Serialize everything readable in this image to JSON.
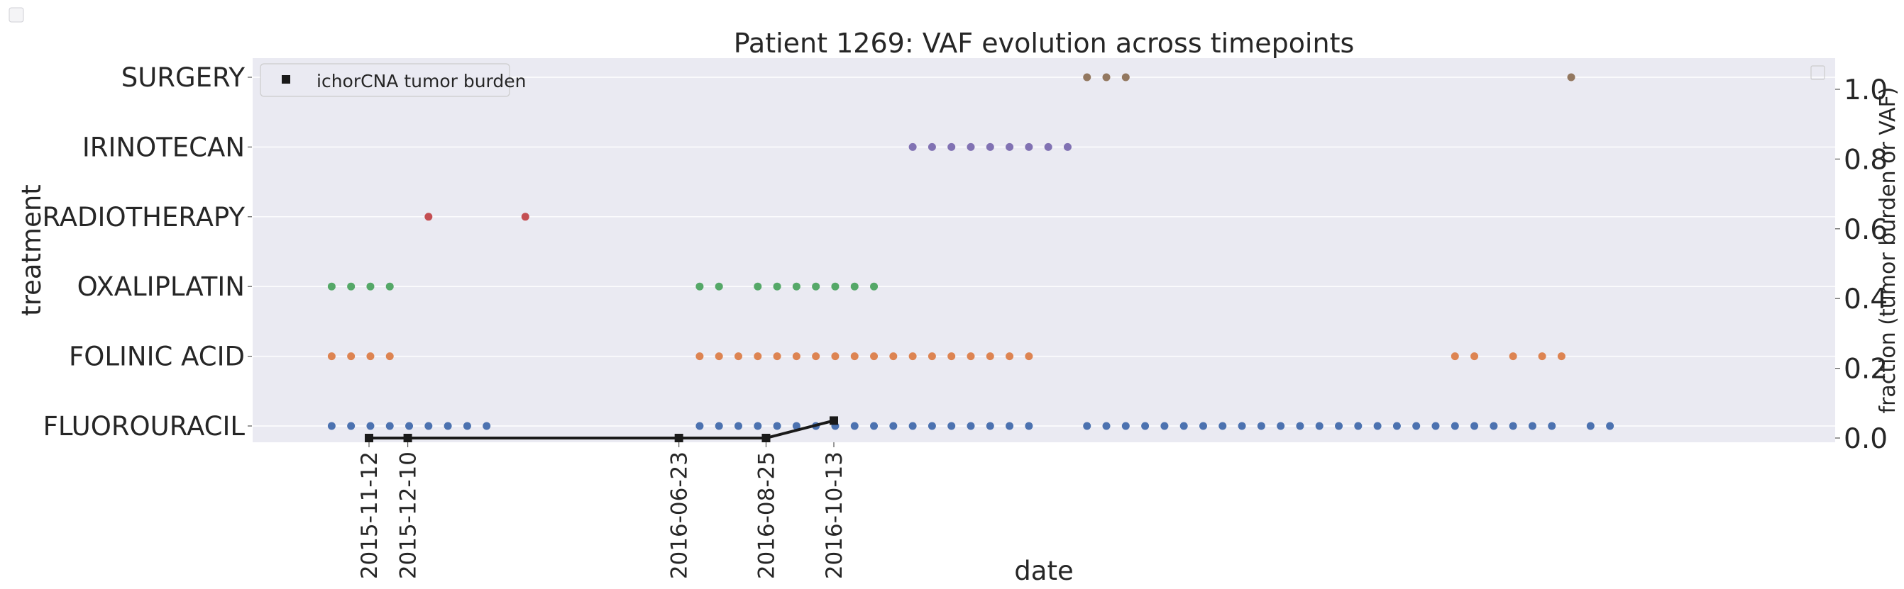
{
  "chart_data": {
    "type": "scatter",
    "title": "Patient 1269: VAF evolution across timepoints",
    "xlabel": "date",
    "ylabel_left": "treatment",
    "ylabel_right": "fraction (tumor burden or VAF)",
    "y_categories": [
      "FLUOROURACIL",
      "FOLINIC ACID",
      "OXALIPLATIN",
      "RADIOTHERAPY",
      "IRINOTECAN",
      "SURGERY"
    ],
    "right_ylim": [
      0.0,
      1.0
    ],
    "right_ticks": [
      "0.0",
      "0.2",
      "0.4",
      "0.6",
      "0.8",
      "1.0"
    ],
    "x_tick_labels": [
      "2015-11-12",
      "2015-12-10",
      "2016-06-23",
      "2016-08-25",
      "2016-10-13"
    ],
    "grid": true,
    "legend_position": "top-left",
    "treatment_series": [
      {
        "treatment": "FLUOROURACIL",
        "color": "#4c72b0",
        "dates": [
          "2015-10-16",
          "2015-10-30",
          "2015-11-13",
          "2015-11-27",
          "2015-12-11",
          "2015-12-25",
          "2016-01-08",
          "2016-01-22",
          "2016-02-05",
          "2016-07-08",
          "2016-07-22",
          "2016-08-05",
          "2016-08-19",
          "2016-09-02",
          "2016-09-16",
          "2016-09-30",
          "2016-10-14",
          "2016-10-28",
          "2016-11-11",
          "2016-11-25",
          "2016-12-09",
          "2016-12-23",
          "2017-01-06",
          "2017-01-20",
          "2017-02-03",
          "2017-02-17",
          "2017-03-03",
          "2017-04-14",
          "2017-04-28",
          "2017-05-12",
          "2017-05-26",
          "2017-06-09",
          "2017-06-23",
          "2017-07-07",
          "2017-07-21",
          "2017-08-04",
          "2017-08-18",
          "2017-09-01",
          "2017-09-15",
          "2017-09-29",
          "2017-10-13",
          "2017-10-27",
          "2017-11-10",
          "2017-11-24",
          "2017-12-08",
          "2017-12-22",
          "2018-01-05",
          "2018-01-19",
          "2018-02-02",
          "2018-02-16",
          "2018-03-02",
          "2018-03-16",
          "2018-04-13",
          "2018-04-27"
        ]
      },
      {
        "treatment": "FOLINIC ACID",
        "color": "#dd8452",
        "dates": [
          "2015-10-16",
          "2015-10-30",
          "2015-11-13",
          "2015-11-27",
          "2016-07-08",
          "2016-07-22",
          "2016-08-05",
          "2016-08-19",
          "2016-09-02",
          "2016-09-16",
          "2016-09-30",
          "2016-10-14",
          "2016-10-28",
          "2016-11-11",
          "2016-11-25",
          "2016-12-09",
          "2016-12-23",
          "2017-01-06",
          "2017-01-20",
          "2017-02-03",
          "2017-02-17",
          "2017-03-03",
          "2018-01-05",
          "2018-01-19",
          "2018-02-16",
          "2018-03-09",
          "2018-03-23"
        ]
      },
      {
        "treatment": "OXALIPLATIN",
        "color": "#55a868",
        "dates": [
          "2015-10-16",
          "2015-10-30",
          "2015-11-13",
          "2015-11-27",
          "2016-07-08",
          "2016-07-22",
          "2016-08-19",
          "2016-09-02",
          "2016-09-16",
          "2016-09-30",
          "2016-10-14",
          "2016-10-28",
          "2016-11-11"
        ]
      },
      {
        "treatment": "RADIOTHERAPY",
        "color": "#c44e52",
        "dates": [
          "2015-12-25",
          "2016-03-04"
        ]
      },
      {
        "treatment": "IRINOTECAN",
        "color": "#8172b3",
        "dates": [
          "2016-12-09",
          "2016-12-23",
          "2017-01-06",
          "2017-01-20",
          "2017-02-03",
          "2017-02-17",
          "2017-03-03",
          "2017-03-17",
          "2017-03-31"
        ]
      },
      {
        "treatment": "SURGERY",
        "color": "#937860",
        "dates": [
          "2017-04-14",
          "2017-04-28",
          "2017-05-12",
          "2018-03-30"
        ]
      }
    ],
    "tumor_burden": {
      "name": "ichorCNA tumor burden",
      "color": "#1a1a1a",
      "dates": [
        "2015-11-12",
        "2015-12-10",
        "2016-06-23",
        "2016-08-25",
        "2016-10-13"
      ],
      "values": [
        0.0,
        0.0,
        0.0,
        0.0,
        0.05
      ]
    }
  }
}
